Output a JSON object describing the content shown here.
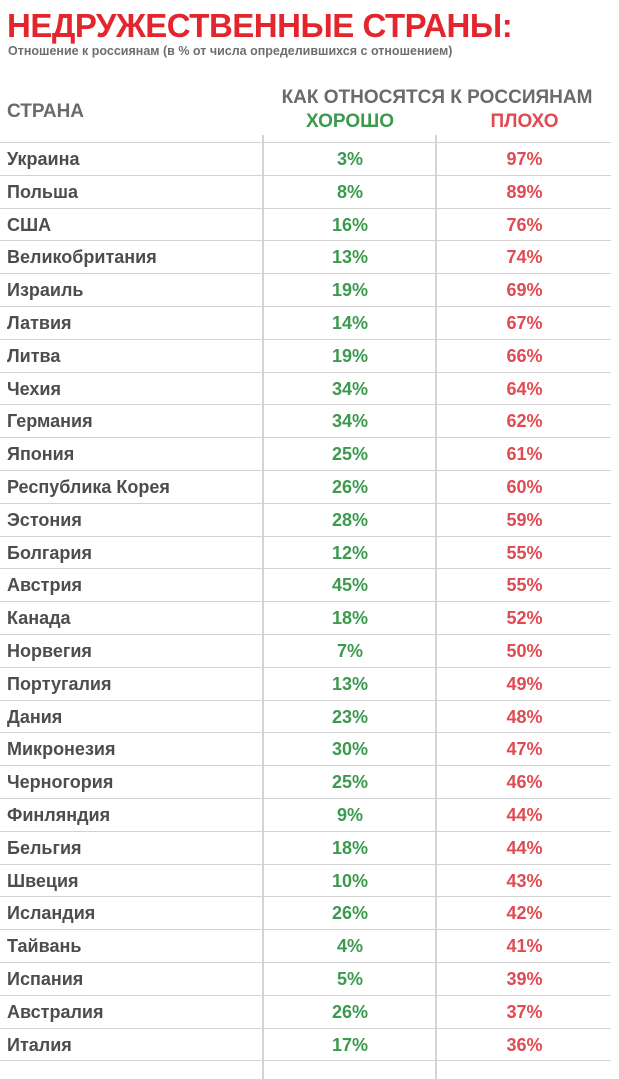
{
  "header": {
    "title": "НЕДРУЖЕСТВЕННЫЕ СТРАНЫ:",
    "subtitle": "Отношение к россиянам (в % от числа определившихся с отношением)"
  },
  "table": {
    "col_country": "СТРАНА",
    "col_group": "КАК ОТНОСЯТСЯ К РОССИЯНАМ",
    "col_good": "ХОРОШО",
    "col_bad": "ПЛОХО",
    "rows": [
      {
        "country": "Украина",
        "good": "3%",
        "bad": "97%"
      },
      {
        "country": "Польша",
        "good": "8%",
        "bad": "89%"
      },
      {
        "country": "США",
        "good": "16%",
        "bad": "76%"
      },
      {
        "country": "Великобритания",
        "good": "13%",
        "bad": "74%"
      },
      {
        "country": "Израиль",
        "good": "19%",
        "bad": "69%"
      },
      {
        "country": "Латвия",
        "good": "14%",
        "bad": "67%"
      },
      {
        "country": "Литва",
        "good": "19%",
        "bad": "66%"
      },
      {
        "country": "Чехия",
        "good": "34%",
        "bad": "64%"
      },
      {
        "country": "Германия",
        "good": "34%",
        "bad": "62%"
      },
      {
        "country": "Япония",
        "good": "25%",
        "bad": "61%"
      },
      {
        "country": "Республика Корея",
        "good": "26%",
        "bad": "60%"
      },
      {
        "country": "Эстония",
        "good": "28%",
        "bad": "59%"
      },
      {
        "country": "Болгария",
        "good": "12%",
        "bad": "55%"
      },
      {
        "country": "Австрия",
        "good": "45%",
        "bad": "55%"
      },
      {
        "country": "Канада",
        "good": "18%",
        "bad": "52%"
      },
      {
        "country": "Норвегия",
        "good": "7%",
        "bad": "50%"
      },
      {
        "country": "Португалия",
        "good": "13%",
        "bad": "49%"
      },
      {
        "country": "Дания",
        "good": "23%",
        "bad": "48%"
      },
      {
        "country": "Микронезия",
        "good": "30%",
        "bad": "47%"
      },
      {
        "country": "Черногория",
        "good": "25%",
        "bad": "46%"
      },
      {
        "country": "Финляндия",
        "good": "9%",
        "bad": "44%"
      },
      {
        "country": "Бельгия",
        "good": "18%",
        "bad": "44%"
      },
      {
        "country": "Швеция",
        "good": "10%",
        "bad": "43%"
      },
      {
        "country": "Исландия",
        "good": "26%",
        "bad": "42%"
      },
      {
        "country": "Тайвань",
        "good": "4%",
        "bad": "41%"
      },
      {
        "country": "Испания",
        "good": "5%",
        "bad": "39%"
      },
      {
        "country": "Австралия",
        "good": "26%",
        "bad": "37%"
      },
      {
        "country": "Италия",
        "good": "17%",
        "bad": "36%"
      }
    ]
  },
  "colors": {
    "title": "#e3262d",
    "good": "#3b9a4e",
    "bad": "#e04a52",
    "text": "#4d4d4d"
  }
}
